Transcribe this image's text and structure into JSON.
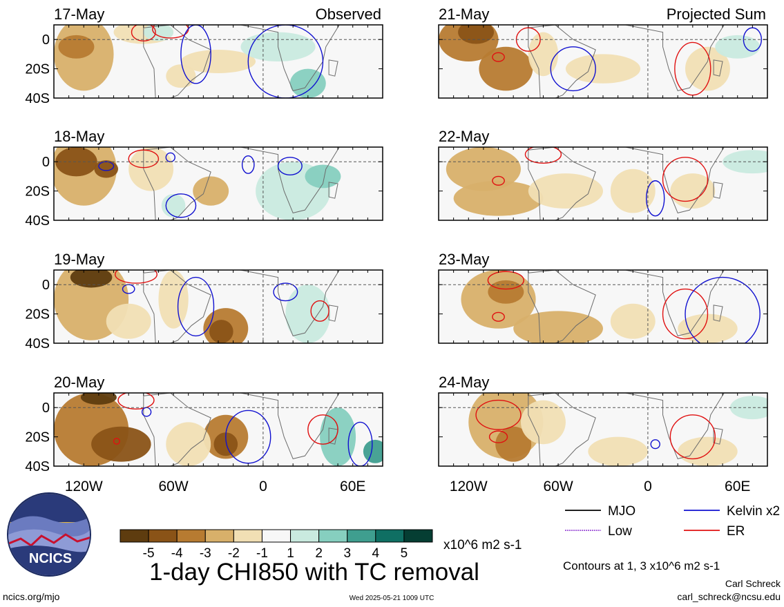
{
  "chart_data": {
    "type": "heatmap",
    "title": "1-day CHI850 with TC removal",
    "units": "x10^6 m2 s-1",
    "column_titles": [
      "Observed",
      "Projected Sum"
    ],
    "x_ticks": [
      "120W",
      "60W",
      "0",
      "60E"
    ],
    "x_tick_values": [
      -120,
      -60,
      0,
      60
    ],
    "xlim": [
      -140,
      80
    ],
    "y_ticks": [
      "0",
      "20S",
      "40S"
    ],
    "y_tick_values": [
      0,
      -20,
      -40
    ],
    "ylim": [
      -40,
      10
    ],
    "grid": "dashed lines at equator and 0 longitude",
    "colorbar": {
      "labels": [
        "-5",
        "-4",
        "-3",
        "-2",
        "-1",
        "1",
        "2",
        "3",
        "4",
        "5"
      ],
      "colors": [
        "#5e3c0f",
        "#8a5317",
        "#b77b31",
        "#d8b06a",
        "#f1dfb4",
        "#f7f7f7",
        "#c9eadf",
        "#86cfbf",
        "#3f9e8f",
        "#0f6f63",
        "#053e33"
      ]
    },
    "legend": {
      "position": "bottom-right",
      "items": [
        {
          "label": "MJO",
          "color": "#000000"
        },
        {
          "label": "Kelvin x2",
          "color": "#1010d0"
        },
        {
          "label": "Low",
          "color": "#9b4fd6"
        },
        {
          "label": "ER",
          "color": "#e01010"
        }
      ]
    },
    "contour_note": "Contours at 1, 3 x10^6 m2 s-1",
    "panels": [
      {
        "date": "17-May",
        "column": "Observed"
      },
      {
        "date": "18-May",
        "column": "Observed"
      },
      {
        "date": "19-May",
        "column": "Observed"
      },
      {
        "date": "20-May",
        "column": "Observed"
      },
      {
        "date": "21-May",
        "column": "Projected Sum"
      },
      {
        "date": "22-May",
        "column": "Projected Sum"
      },
      {
        "date": "23-May",
        "column": "Projected Sum"
      },
      {
        "date": "24-May",
        "column": "Projected Sum"
      }
    ]
  },
  "footer": {
    "logo_text": "NCICS",
    "url": "ncics.org/mjo",
    "timestamp": "Wed 2025-05-21 1009 UTC",
    "author": "Carl Schreck",
    "email": "carl_schreck@ncsu.edu"
  }
}
